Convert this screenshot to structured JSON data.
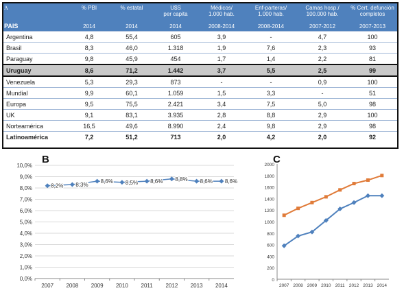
{
  "table": {
    "panel_label": "A",
    "header_row1": [
      "% PBI",
      "% estatal",
      "U$S\nper capita",
      "Médicos/\n1.000 hab.",
      "Enf-parteras/\n1.000 hab.",
      "Camas hosp./\n100.000 hab.",
      "% Cert. defunción\ncompletos"
    ],
    "header_row2": [
      "PAIS",
      "2014",
      "2014",
      "2014",
      "2008-2014",
      "2008-2014",
      "2007-2012",
      "2007-2013"
    ],
    "rows": [
      {
        "country": "Argentina",
        "values": [
          "4,8",
          "55,4",
          "605",
          "3,9",
          "-",
          "4,7",
          "100"
        ],
        "style": ""
      },
      {
        "country": "Brasil",
        "values": [
          "8,3",
          "46,0",
          "1.318",
          "1,9",
          "7,6",
          "2,3",
          "93"
        ],
        "style": ""
      },
      {
        "country": "Paraguay",
        "values": [
          "9,8",
          "45,9",
          "454",
          "1,7",
          "1,4",
          "2,2",
          "81"
        ],
        "style": ""
      },
      {
        "country": "Uruguay",
        "values": [
          "8,6",
          "71,2",
          "1.442",
          "3,7",
          "5,5",
          "2,5",
          "99"
        ],
        "style": "highlight"
      },
      {
        "country": "Venezuela",
        "values": [
          "5,3",
          "29,3",
          "873",
          "-",
          "-",
          "0,9",
          "100"
        ],
        "style": ""
      },
      {
        "country": "Mundial",
        "values": [
          "9,9",
          "60,1",
          "1.059",
          "1,5",
          "3,3",
          "-",
          "51"
        ],
        "style": ""
      },
      {
        "country": "Europa",
        "values": [
          "9,5",
          "75,5",
          "2.421",
          "3,4",
          "7,5",
          "5,0",
          "98"
        ],
        "style": ""
      },
      {
        "country": "UK",
        "values": [
          "9,1",
          "83,1",
          "3.935",
          "2,8",
          "8,8",
          "2,9",
          "100"
        ],
        "style": ""
      },
      {
        "country": "Norteamérica",
        "values": [
          "16,5",
          "49,6",
          "8.990",
          "2,4",
          "9,8",
          "2,9",
          "98"
        ],
        "style": ""
      },
      {
        "country": "Latinoamérica",
        "values": [
          "7,2",
          "51,2",
          "713",
          "2,0",
          "4,2",
          "2,0",
          "92"
        ],
        "style": "bold"
      }
    ]
  },
  "chart_data": [
    {
      "panel_label": "B",
      "type": "line",
      "x": [
        "2007",
        "2008",
        "2009",
        "2010",
        "2011",
        "2012",
        "2013",
        "2014"
      ],
      "series": [
        {
          "values": [
            8.2,
            8.3,
            8.6,
            8.5,
            8.6,
            8.8,
            8.6,
            8.6
          ],
          "labels": [
            "8,2%",
            "8,3%",
            "8,6%",
            "8,5%",
            "8,6%",
            "8,8%",
            "8,6%",
            "8,6%"
          ],
          "color": "#4f81bd",
          "marker": "diamond"
        }
      ],
      "ylim": [
        0,
        10
      ],
      "yticks": [
        "0,0%",
        "1,0%",
        "2,0%",
        "3,0%",
        "4,0%",
        "5,0%",
        "6,0%",
        "7,0%",
        "8,0%",
        "9,0%",
        "10,0%"
      ],
      "grid": true
    },
    {
      "panel_label": "C",
      "type": "line",
      "x": [
        "2007",
        "2008",
        "2009",
        "2010",
        "2011",
        "2012",
        "2013",
        "2014"
      ],
      "series": [
        {
          "values": [
            1110,
            1230,
            1330,
            1430,
            1550,
            1660,
            1720,
            1800
          ],
          "color": "#e07b39",
          "marker": "square"
        },
        {
          "values": [
            580,
            750,
            820,
            1020,
            1220,
            1330,
            1450,
            1450
          ],
          "color": "#4f81bd",
          "marker": "diamond"
        }
      ],
      "ylim": [
        0,
        2000
      ],
      "yticks": [
        "0",
        "200",
        "400",
        "600",
        "800",
        "1000",
        "1200",
        "1400",
        "1600",
        "1800",
        "2000"
      ],
      "grid": false
    }
  ]
}
